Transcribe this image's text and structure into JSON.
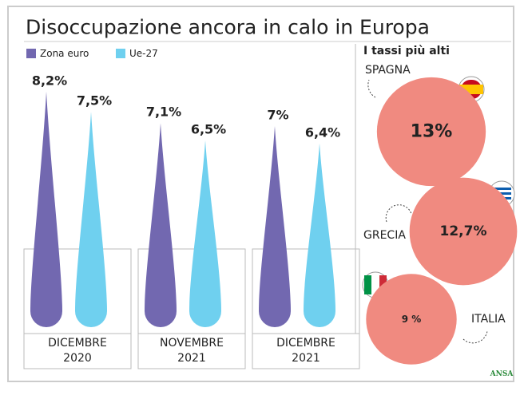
{
  "chart_data": [
    {
      "type": "bar",
      "title": "Disoccupazione ancora in calo in Europa",
      "categories": [
        "DICEMBRE 2020",
        "NOVEMBRE 2021",
        "DICEMBRE 2021"
      ],
      "series": [
        {
          "name": "Zona euro",
          "color": "#7268b0",
          "values": [
            8.2,
            7.1,
            7
          ],
          "value_labels": [
            "8,2%",
            "7,1%",
            "7%"
          ]
        },
        {
          "name": "Ue-27",
          "color": "#6fd0ef",
          "values": [
            7.5,
            6.5,
            6.4
          ],
          "value_labels": [
            "7,5%",
            "6,5%",
            "6,4%"
          ]
        }
      ]
    },
    {
      "type": "bubble",
      "title": "I tassi più alti",
      "categories": [
        "SPAGNA",
        "GRECIA",
        "ITALIA"
      ],
      "values": [
        13,
        12.7,
        9
      ],
      "value_labels": [
        "13%",
        "12,7%",
        "9 %"
      ],
      "color": "#f08a80",
      "source": "ANSA"
    }
  ]
}
